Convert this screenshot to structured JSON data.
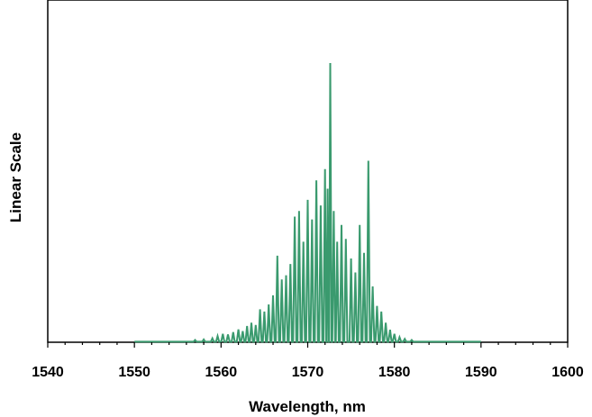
{
  "chart_data": {
    "type": "line",
    "title": "",
    "xlabel": "Wavelength, nm",
    "ylabel": "Linear Scale",
    "xlim": [
      1540,
      1600
    ],
    "ylim": [
      0,
      1
    ],
    "x_major_ticks": [
      1540,
      1550,
      1560,
      1570,
      1580,
      1590,
      1600
    ],
    "x_minor_step": 2,
    "y_ticks_shown": false,
    "grid": false,
    "legend": "none",
    "series": [
      {
        "color": "#3a9a6e",
        "peaks": [
          {
            "x": 1557.0,
            "y": 0.008
          },
          {
            "x": 1558.0,
            "y": 0.01
          },
          {
            "x": 1559.0,
            "y": 0.014
          },
          {
            "x": 1559.6,
            "y": 0.022
          },
          {
            "x": 1560.2,
            "y": 0.03
          },
          {
            "x": 1560.8,
            "y": 0.028
          },
          {
            "x": 1561.4,
            "y": 0.036
          },
          {
            "x": 1562.0,
            "y": 0.046
          },
          {
            "x": 1562.5,
            "y": 0.04
          },
          {
            "x": 1563.0,
            "y": 0.058
          },
          {
            "x": 1563.5,
            "y": 0.07
          },
          {
            "x": 1564.0,
            "y": 0.062
          },
          {
            "x": 1564.5,
            "y": 0.118
          },
          {
            "x": 1565.0,
            "y": 0.11
          },
          {
            "x": 1565.5,
            "y": 0.135
          },
          {
            "x": 1566.0,
            "y": 0.168
          },
          {
            "x": 1566.5,
            "y": 0.31
          },
          {
            "x": 1567.0,
            "y": 0.225
          },
          {
            "x": 1567.5,
            "y": 0.24
          },
          {
            "x": 1568.0,
            "y": 0.28
          },
          {
            "x": 1568.5,
            "y": 0.45
          },
          {
            "x": 1569.0,
            "y": 0.47
          },
          {
            "x": 1569.5,
            "y": 0.36
          },
          {
            "x": 1570.0,
            "y": 0.51
          },
          {
            "x": 1570.5,
            "y": 0.44
          },
          {
            "x": 1571.0,
            "y": 0.58
          },
          {
            "x": 1571.5,
            "y": 0.49
          },
          {
            "x": 1572.0,
            "y": 0.62
          },
          {
            "x": 1572.3,
            "y": 0.55
          },
          {
            "x": 1572.6,
            "y": 1.0
          },
          {
            "x": 1573.0,
            "y": 0.47
          },
          {
            "x": 1573.4,
            "y": 0.36
          },
          {
            "x": 1573.9,
            "y": 0.42
          },
          {
            "x": 1574.4,
            "y": 0.37
          },
          {
            "x": 1575.0,
            "y": 0.3
          },
          {
            "x": 1575.5,
            "y": 0.25
          },
          {
            "x": 1576.0,
            "y": 0.42
          },
          {
            "x": 1576.5,
            "y": 0.32
          },
          {
            "x": 1577.0,
            "y": 0.65
          },
          {
            "x": 1577.5,
            "y": 0.2
          },
          {
            "x": 1578.0,
            "y": 0.13
          },
          {
            "x": 1578.5,
            "y": 0.11
          },
          {
            "x": 1579.0,
            "y": 0.07
          },
          {
            "x": 1579.5,
            "y": 0.045
          },
          {
            "x": 1580.0,
            "y": 0.03
          },
          {
            "x": 1580.6,
            "y": 0.018
          },
          {
            "x": 1581.2,
            "y": 0.012
          },
          {
            "x": 1582.0,
            "y": 0.008
          }
        ],
        "baseline_range": [
          1550,
          1590
        ]
      }
    ]
  }
}
